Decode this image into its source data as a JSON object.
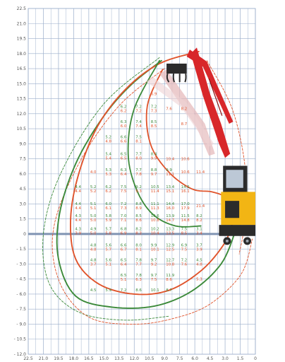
{
  "colors": {
    "grid": "#9aaecb",
    "axis_base": "#7f93b2",
    "green": "#3c8a3a",
    "orange": "#e0542c",
    "red": "#d8272a",
    "crane_body": "#f2b514",
    "crane_dark": "#2b2b2b"
  },
  "chart_data": {
    "type": "load-chart",
    "y_ticks": [
      "22.5",
      "21.0",
      "19.5",
      "18.0",
      "16.5",
      "15.0",
      "13.5",
      "12.0",
      "10.5",
      "9.0",
      "7.5",
      "6.0",
      "4.5",
      "3.0",
      "1.5",
      "0",
      "- 1.5",
      "- 3.0",
      "- 4.5",
      "- 6.0",
      "- 7.5",
      "- 9.0",
      "- 10.5",
      "- 12.0"
    ],
    "x_ticks": [
      "22.5",
      "21.0",
      "19.5",
      "18.0",
      "16.5",
      "15.0",
      "13.5",
      "12.0",
      "10.5",
      "9.0",
      "7.5",
      "6.0",
      "4.5",
      "3.0",
      "1.5",
      "0"
    ],
    "xlim": [
      22.5,
      0
    ],
    "ylim": [
      -12.0,
      22.5
    ],
    "grid": true,
    "cells": [
      {
        "x": 10.5,
        "y": 14.0,
        "o": "6.9"
      },
      {
        "x": 13.5,
        "y": 12.5,
        "g": "6.2",
        "o": "6.2"
      },
      {
        "x": 12.0,
        "y": 12.5,
        "g": "7.2",
        "o": "7.2"
      },
      {
        "x": 10.5,
        "y": 12.5,
        "g": "7.2",
        "o": "7.3"
      },
      {
        "x": 9.0,
        "y": 12.5,
        "o": "7.6"
      },
      {
        "x": 7.5,
        "y": 12.5,
        "o": "8.2"
      },
      {
        "x": 13.5,
        "y": 11.0,
        "g": "6.3",
        "o": "6.0"
      },
      {
        "x": 12.0,
        "y": 11.0,
        "g": "7.4",
        "o": "7.4"
      },
      {
        "x": 10.5,
        "y": 11.0,
        "g": "8.5",
        "o": "8.5"
      },
      {
        "x": 7.5,
        "y": 11.0,
        "o": "8.7"
      },
      {
        "x": 15.0,
        "y": 9.5,
        "g": "5.2",
        "o": "4.8"
      },
      {
        "x": 13.5,
        "y": 9.5,
        "g": "6.6",
        "o": "6.6"
      },
      {
        "x": 12.0,
        "y": 9.5,
        "g": "7.5",
        "o": "8.1"
      },
      {
        "x": 15.0,
        "y": 7.8,
        "g": "5.4",
        "o": "5.4"
      },
      {
        "x": 13.5,
        "y": 7.8,
        "g": "6.5",
        "o": "6.5"
      },
      {
        "x": 12.0,
        "y": 7.8,
        "g": "7.7",
        "o": "8.0"
      },
      {
        "x": 10.5,
        "y": 7.8,
        "g": "8.4",
        "o": "9.9"
      },
      {
        "x": 9.0,
        "y": 7.5,
        "o": "10.4"
      },
      {
        "x": 7.5,
        "y": 7.5,
        "o": "10.6"
      },
      {
        "x": 16.5,
        "y": 6.2,
        "o": "4.0"
      },
      {
        "x": 15.0,
        "y": 6.2,
        "g": "5.3",
        "o": "5.3"
      },
      {
        "x": 13.5,
        "y": 6.2,
        "g": "6.3",
        "o": "6.4"
      },
      {
        "x": 12.0,
        "y": 6.2,
        "g": "7.7",
        "o": "7.8"
      },
      {
        "x": 10.5,
        "y": 6.2,
        "g": "8.8",
        "o": "9.7"
      },
      {
        "x": 9.0,
        "y": 6.2,
        "g": "9.9",
        "o": "11.1"
      },
      {
        "x": 7.5,
        "y": 6.2,
        "o": "10.6"
      },
      {
        "x": 6.0,
        "y": 6.2,
        "o": "11.4"
      },
      {
        "x": 18.0,
        "y": 4.5,
        "g": "4.4",
        "o": "4.4"
      },
      {
        "x": 16.5,
        "y": 4.5,
        "g": "5.2",
        "o": "5.2"
      },
      {
        "x": 15.0,
        "y": 4.5,
        "g": "6.2",
        "o": "6.2"
      },
      {
        "x": 13.5,
        "y": 4.5,
        "g": "7.5",
        "o": "7.5"
      },
      {
        "x": 12.0,
        "y": 4.5,
        "g": "9.2",
        "o": "9.3"
      },
      {
        "x": 10.5,
        "y": 4.5,
        "g": "10.5",
        "o": "11.4"
      },
      {
        "x": 9.0,
        "y": 4.5,
        "g": "13.4",
        "o": "15.1"
      },
      {
        "x": 7.5,
        "y": 4.5,
        "g": "14.5",
        "o": "16.1"
      },
      {
        "x": 18.0,
        "y": 2.8,
        "g": "4.4",
        "o": "4.4"
      },
      {
        "x": 16.5,
        "y": 2.8,
        "g": "5.1",
        "o": "5.1"
      },
      {
        "x": 15.0,
        "y": 2.8,
        "g": "6.0",
        "o": "6.1"
      },
      {
        "x": 13.5,
        "y": 2.8,
        "g": "7.2",
        "o": "7.3"
      },
      {
        "x": 12.0,
        "y": 2.8,
        "g": "8.8",
        "o": "8.9"
      },
      {
        "x": 10.5,
        "y": 2.8,
        "g": "11.1",
        "o": "11.3"
      },
      {
        "x": 9.0,
        "y": 2.8,
        "g": "14.4",
        "o": "16.0"
      },
      {
        "x": 7.5,
        "y": 2.8,
        "g": "17.0",
        "o": "17.9"
      },
      {
        "x": 6.0,
        "y": 2.8,
        "o": "21.4"
      },
      {
        "x": 18.0,
        "y": 1.6,
        "g": "4.3",
        "o": "4.4"
      },
      {
        "x": 16.5,
        "y": 1.6,
        "g": "5.0",
        "o": "5.0"
      },
      {
        "x": 15.0,
        "y": 1.6,
        "g": "5.8",
        "o": "5.9"
      },
      {
        "x": 13.5,
        "y": 1.6,
        "g": "7.0",
        "o": "7.1"
      },
      {
        "x": 12.0,
        "y": 1.6,
        "g": "8.5",
        "o": "8.6"
      },
      {
        "x": 10.5,
        "y": 1.6,
        "g": "10.6",
        "o": "10.8"
      },
      {
        "x": 9.0,
        "y": 1.6,
        "g": "13.9",
        "o": "14.7"
      },
      {
        "x": 7.5,
        "y": 1.6,
        "g": "11.5",
        "o": "14.8"
      },
      {
        "x": 6.0,
        "y": 1.6,
        "g": "8.2",
        "o": "8.2"
      },
      {
        "x": 18.0,
        "y": 0.3,
        "g": "4.3",
        "o": "3.9"
      },
      {
        "x": 16.5,
        "y": 0.3,
        "g": "4.9",
        "o": "5.0"
      },
      {
        "x": 15.0,
        "y": 0.3,
        "g": "5.7",
        "o": "5.8"
      },
      {
        "x": 13.5,
        "y": 0.3,
        "g": "6.8",
        "o": "6.9"
      },
      {
        "x": 12.0,
        "y": 0.3,
        "g": "8.2",
        "o": "8.3"
      },
      {
        "x": 10.5,
        "y": 0.3,
        "g": "10.2",
        "o": "10.4"
      },
      {
        "x": 9.0,
        "y": 0.3,
        "g": "13.3",
        "o": "13.5"
      },
      {
        "x": 7.5,
        "y": 0.3,
        "g": "7.5",
        "o": "8.5"
      },
      {
        "x": 6.0,
        "y": 0.3,
        "g": "3.1",
        "o": "3.4"
      },
      {
        "x": 16.5,
        "y": -1.3,
        "g": "4.8",
        "o": "4.8"
      },
      {
        "x": 15.0,
        "y": -1.3,
        "g": "5.6",
        "o": "5.7"
      },
      {
        "x": 13.5,
        "y": -1.3,
        "g": "6.6",
        "o": "6.7"
      },
      {
        "x": 12.0,
        "y": -1.3,
        "g": "8.0",
        "o": "8.1"
      },
      {
        "x": 10.5,
        "y": -1.3,
        "g": "9.9",
        "o": "10.1"
      },
      {
        "x": 9.0,
        "y": -1.3,
        "g": "12.9",
        "o": "12.5"
      },
      {
        "x": 7.5,
        "y": -1.3,
        "g": "6.9",
        "o": "7.5"
      },
      {
        "x": 6.0,
        "y": -1.3,
        "g": "3.7",
        "o": "3.9"
      },
      {
        "x": 16.5,
        "y": -2.8,
        "g": "4.8",
        "o": "3.7"
      },
      {
        "x": 15.0,
        "y": -2.8,
        "g": "5.6",
        "o": "5.1"
      },
      {
        "x": 13.5,
        "y": -2.8,
        "g": "6.5",
        "o": "6.4"
      },
      {
        "x": 12.0,
        "y": -2.8,
        "g": "7.8",
        "o": "7.7"
      },
      {
        "x": 10.5,
        "y": -2.8,
        "g": "9.7",
        "o": "9.2"
      },
      {
        "x": 9.0,
        "y": -2.8,
        "g": "12.7",
        "o": "10.8"
      },
      {
        "x": 7.5,
        "y": -2.8,
        "g": "7.2",
        "o": "7.6"
      },
      {
        "x": 6.0,
        "y": -2.8,
        "g": "4.5",
        "o": "4.8"
      },
      {
        "x": 13.5,
        "y": -4.3,
        "g": "6.5",
        "o": "5.1"
      },
      {
        "x": 12.0,
        "y": -4.3,
        "g": "7.8",
        "o": "6.3"
      },
      {
        "x": 10.5,
        "y": -4.3,
        "g": "9.7",
        "o": "7.5"
      },
      {
        "x": 9.0,
        "y": -4.3,
        "g": "11.9",
        "o": "8.6"
      },
      {
        "x": 16.5,
        "y": -5.8,
        "g": "4.5"
      },
      {
        "x": 15.0,
        "y": -5.8,
        "g": "5.9"
      },
      {
        "x": 13.5,
        "y": -5.8,
        "g": "7.2"
      },
      {
        "x": 12.0,
        "y": -5.8,
        "g": "8.6"
      },
      {
        "x": 10.5,
        "y": -5.8,
        "g": "10.1"
      },
      {
        "x": 9.0,
        "y": -5.8,
        "g": "8.7"
      },
      {
        "x": 6.0,
        "y": -4.5,
        "o": "5.3"
      }
    ]
  }
}
